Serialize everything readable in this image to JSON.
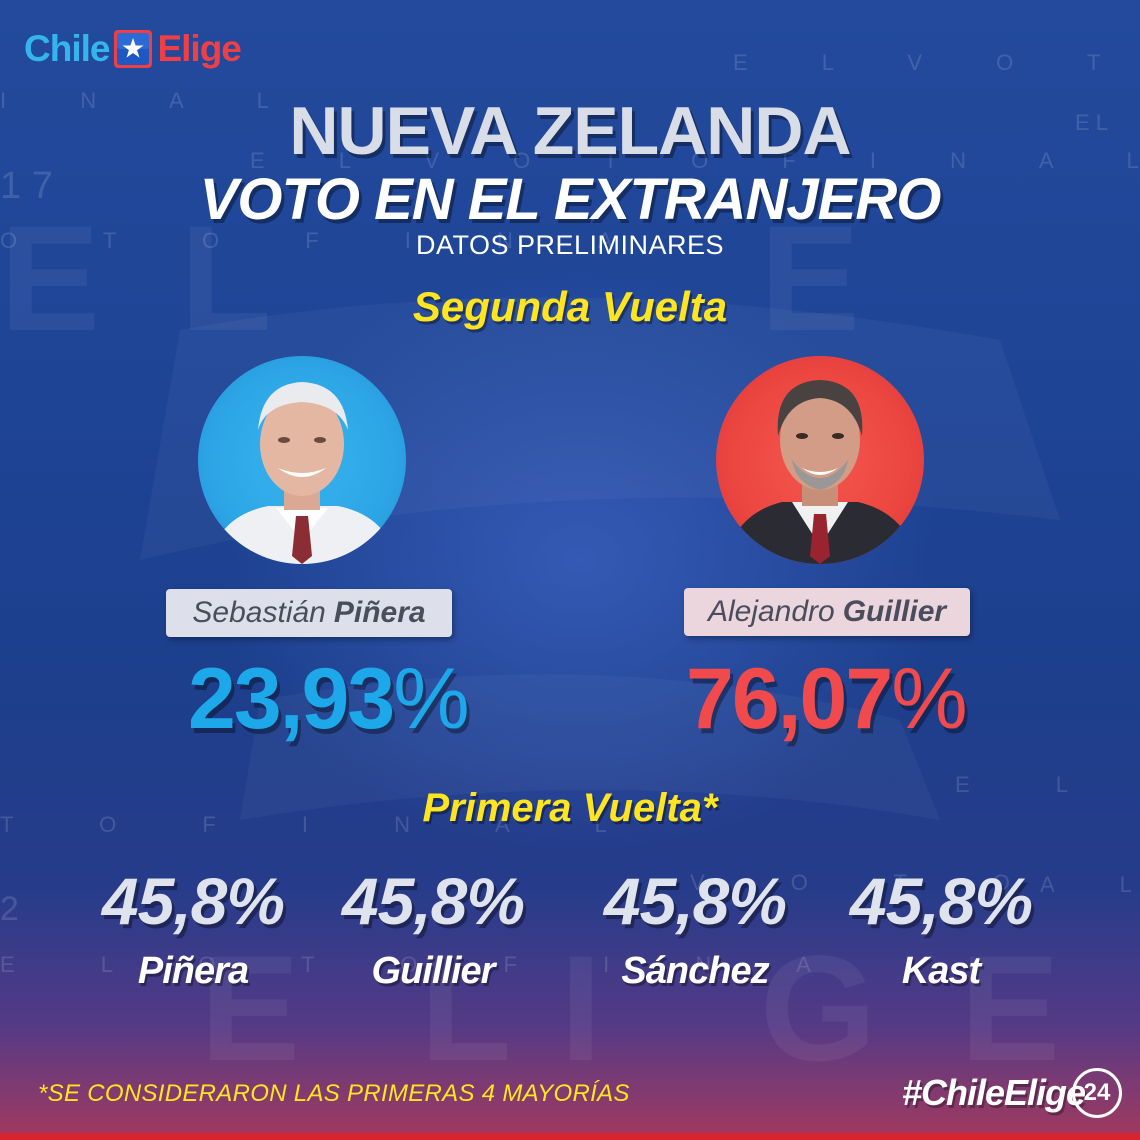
{
  "brand": {
    "logo_left": "Chile",
    "logo_right": "Elige",
    "hashtag": "#ChileElige",
    "channel_badge": "24",
    "colors": {
      "light_blue": "#35b4ee",
      "red": "#ef3f45",
      "yellow": "#ffe51f"
    }
  },
  "header": {
    "country": "NUEVA ZELANDA",
    "subtitle": "VOTO EN EL EXTRANJERO",
    "note": "DATOS PRELIMINARES"
  },
  "segunda_vuelta": {
    "title": "Segunda Vuelta",
    "candidates": [
      {
        "first_name": "Sebastián",
        "last_name": "Piñera",
        "percent": "23,93",
        "sign": "%",
        "color": "#1da8ea"
      },
      {
        "first_name": "Alejandro",
        "last_name": "Guillier",
        "percent": "76,07",
        "sign": "%",
        "color": "#f14a4c"
      }
    ]
  },
  "primera_vuelta": {
    "title": "Primera Vuelta*",
    "results": [
      {
        "value": "45,8%",
        "name": "Piñera"
      },
      {
        "value": "45,8%",
        "name": "Guillier"
      },
      {
        "value": "45,8%",
        "name": "Sánchez"
      },
      {
        "value": "45,8%",
        "name": "Kast"
      }
    ]
  },
  "footnote": "*SE CONSIDERARON LAS PRIMERAS 4 MAYORÍAS",
  "icons": [
    "chile-flag-icon",
    "portrait-pinera",
    "portrait-guillier"
  ]
}
